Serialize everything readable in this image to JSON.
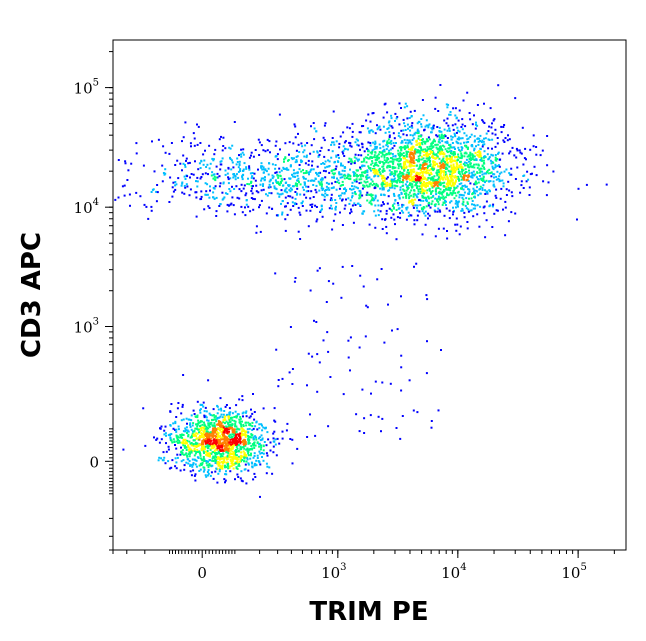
{
  "chart_data": {
    "type": "scatter",
    "xlabel": "TRIM PE",
    "ylabel": "CD3 APC",
    "x_scale": "biexponential",
    "y_scale": "biexponential",
    "xlim": [
      -400,
      250000
    ],
    "ylim": [
      -400,
      250000
    ],
    "grid": false,
    "density_colormap": [
      "#0000ff",
      "#00bfff",
      "#00ff80",
      "#ffff00",
      "#ff8000",
      "#ff0000"
    ],
    "x_ticks": [
      {
        "value": 0,
        "base": "0",
        "exp": ""
      },
      {
        "value": 1000,
        "base": "10",
        "exp": "3"
      },
      {
        "value": 10000,
        "base": "10",
        "exp": "4"
      },
      {
        "value": 100000,
        "base": "10",
        "exp": "5"
      }
    ],
    "y_ticks": [
      {
        "value": 0,
        "base": "0",
        "exp": ""
      },
      {
        "value": 1000,
        "base": "10",
        "exp": "3"
      },
      {
        "value": 10000,
        "base": "10",
        "exp": "4"
      },
      {
        "value": 100000,
        "base": "10",
        "exp": "5"
      }
    ],
    "populations": [
      {
        "center_x": 50,
        "center_y": 60,
        "count": 1400
      },
      {
        "center_x": 6000,
        "center_y": 22000,
        "count": 1900
      },
      {
        "center_x": 600,
        "center_y": 18000,
        "count": 1200
      }
    ]
  }
}
